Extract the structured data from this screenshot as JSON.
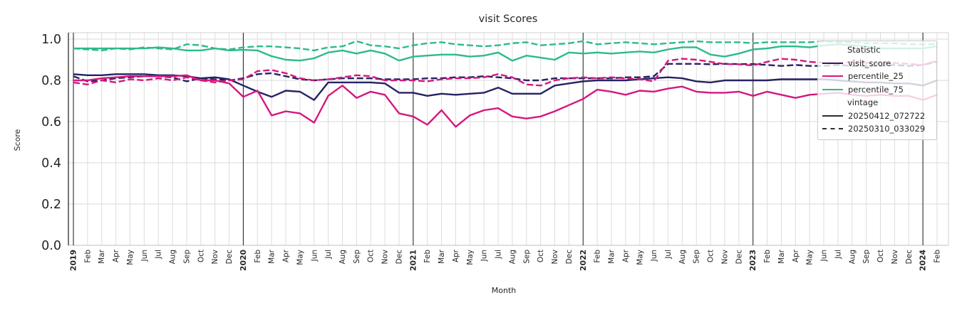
{
  "title": "visit Scores",
  "axes": {
    "xlabel": "Month",
    "ylabel": "Score"
  },
  "legend": {
    "title": "Statistic",
    "statistic_entries": [
      {
        "label": "visit_score",
        "color": "#262262"
      },
      {
        "label": "percentile_25",
        "color": "#d5177e"
      },
      {
        "label": "percentile_75",
        "color": "#2cba8d"
      }
    ],
    "vintage_title": "vintage",
    "vintage_line_color": "#2e2e2e",
    "vintage_entries": [
      {
        "label": "20250412_072722",
        "style": "solid"
      },
      {
        "label": "20250310_033029",
        "style": "dashed"
      }
    ]
  },
  "chart_data": {
    "type": "line",
    "title": "visit Scores",
    "xlabel": "Month",
    "ylabel": "Score",
    "ylim": [
      0.0,
      1.0
    ],
    "ytick_labels": [
      "0.0",
      "0.2",
      "0.4",
      "0.6",
      "0.8",
      "1.0"
    ],
    "grid": true,
    "legend_position": "upper right",
    "x_labels": [
      "2019",
      "Feb",
      "Mar",
      "Apr",
      "May",
      "Jun",
      "Jul",
      "Aug",
      "Sep",
      "Oct",
      "Nov",
      "Dec",
      "2020",
      "Feb",
      "Mar",
      "Apr",
      "May",
      "Jun",
      "Jul",
      "Aug",
      "Sep",
      "Oct",
      "Nov",
      "Dec",
      "2021",
      "Feb",
      "Mar",
      "Apr",
      "May",
      "Jun",
      "Jul",
      "Aug",
      "Sep",
      "Oct",
      "Nov",
      "Dec",
      "2022",
      "Feb",
      "Mar",
      "Apr",
      "May",
      "Jun",
      "Jul",
      "Aug",
      "Sep",
      "Oct",
      "Nov",
      "Dec",
      "2023",
      "Feb",
      "Mar",
      "Apr",
      "May",
      "Jun",
      "Jul",
      "Aug",
      "Sep",
      "Oct",
      "Nov",
      "Dec",
      "2024",
      "Feb"
    ],
    "year_tick_indices": [
      0,
      12,
      24,
      36,
      48,
      60
    ],
    "series": [
      {
        "name": "visit_score",
        "vintage": "20250412_072722",
        "line_style": "solid",
        "color": "#262262",
        "values": [
          0.83,
          0.825,
          0.825,
          0.83,
          0.83,
          0.83,
          0.825,
          0.825,
          0.82,
          0.81,
          0.815,
          0.805,
          0.775,
          0.745,
          0.72,
          0.75,
          0.745,
          0.705,
          0.79,
          0.79,
          0.79,
          0.79,
          0.785,
          0.74,
          0.74,
          0.725,
          0.735,
          0.73,
          0.735,
          0.74,
          0.765,
          0.735,
          0.735,
          0.735,
          0.775,
          0.785,
          0.795,
          0.8,
          0.8,
          0.8,
          0.805,
          0.81,
          0.815,
          0.81,
          0.795,
          0.79,
          0.8,
          0.8,
          0.8,
          0.8,
          0.805,
          0.805,
          0.805,
          0.805,
          0.8,
          0.795,
          0.79,
          0.79,
          0.785,
          0.785,
          0.775,
          0.8
        ]
      },
      {
        "name": "visit_score",
        "vintage": "20250310_033029",
        "line_style": "dashed",
        "color": "#262262",
        "values": [
          0.82,
          0.795,
          0.8,
          0.81,
          0.815,
          0.82,
          0.82,
          0.815,
          0.795,
          0.81,
          0.805,
          0.8,
          0.81,
          0.83,
          0.835,
          0.82,
          0.805,
          0.8,
          0.805,
          0.81,
          0.81,
          0.81,
          0.805,
          0.805,
          0.805,
          0.81,
          0.81,
          0.815,
          0.815,
          0.82,
          0.815,
          0.81,
          0.8,
          0.8,
          0.81,
          0.81,
          0.81,
          0.81,
          0.81,
          0.815,
          0.815,
          0.82,
          0.88,
          0.88,
          0.88,
          0.878,
          0.88,
          0.879,
          0.879,
          0.875,
          0.87,
          0.875,
          0.87,
          0.87,
          0.875,
          0.87,
          0.87,
          0.87,
          0.875,
          0.87,
          0.875,
          0.89
        ]
      },
      {
        "name": "percentile_25",
        "vintage": "20250412_072722",
        "line_style": "solid",
        "color": "#d5177e",
        "values": [
          0.8,
          0.8,
          0.81,
          0.815,
          0.82,
          0.82,
          0.82,
          0.82,
          0.825,
          0.8,
          0.8,
          0.785,
          0.72,
          0.75,
          0.63,
          0.65,
          0.64,
          0.595,
          0.725,
          0.775,
          0.715,
          0.745,
          0.73,
          0.64,
          0.625,
          0.585,
          0.655,
          0.575,
          0.63,
          0.655,
          0.665,
          0.625,
          0.615,
          0.625,
          0.65,
          0.68,
          0.71,
          0.755,
          0.745,
          0.73,
          0.75,
          0.745,
          0.76,
          0.77,
          0.745,
          0.74,
          0.74,
          0.745,
          0.725,
          0.745,
          0.73,
          0.715,
          0.73,
          0.735,
          0.74,
          0.73,
          0.725,
          0.73,
          0.725,
          0.725,
          0.705,
          0.73
        ]
      },
      {
        "name": "percentile_25",
        "vintage": "20250310_033029",
        "line_style": "dashed",
        "color": "#d5177e",
        "values": [
          0.79,
          0.78,
          0.8,
          0.79,
          0.805,
          0.8,
          0.81,
          0.8,
          0.815,
          0.8,
          0.79,
          0.8,
          0.805,
          0.845,
          0.85,
          0.835,
          0.81,
          0.8,
          0.805,
          0.815,
          0.825,
          0.82,
          0.8,
          0.8,
          0.8,
          0.795,
          0.805,
          0.81,
          0.81,
          0.815,
          0.83,
          0.815,
          0.78,
          0.775,
          0.8,
          0.81,
          0.815,
          0.81,
          0.815,
          0.81,
          0.805,
          0.795,
          0.895,
          0.905,
          0.9,
          0.89,
          0.879,
          0.878,
          0.872,
          0.89,
          0.905,
          0.9,
          0.89,
          0.885,
          0.885,
          0.89,
          0.885,
          0.88,
          0.885,
          0.88,
          0.875,
          0.895
        ]
      },
      {
        "name": "percentile_75",
        "vintage": "20250412_072722",
        "line_style": "solid",
        "color": "#2cba8d",
        "values": [
          0.955,
          0.955,
          0.955,
          0.955,
          0.955,
          0.955,
          0.96,
          0.955,
          0.945,
          0.945,
          0.955,
          0.945,
          0.948,
          0.945,
          0.917,
          0.9,
          0.896,
          0.907,
          0.935,
          0.945,
          0.93,
          0.945,
          0.93,
          0.896,
          0.915,
          0.92,
          0.925,
          0.925,
          0.915,
          0.92,
          0.935,
          0.895,
          0.92,
          0.91,
          0.9,
          0.935,
          0.93,
          0.935,
          0.93,
          0.935,
          0.94,
          0.935,
          0.95,
          0.96,
          0.96,
          0.925,
          0.915,
          0.93,
          0.95,
          0.955,
          0.965,
          0.965,
          0.96,
          0.97,
          0.975,
          0.97,
          0.965,
          0.955,
          0.955,
          0.955,
          0.955,
          0.965
        ]
      },
      {
        "name": "percentile_75",
        "vintage": "20250310_033029",
        "line_style": "dashed",
        "color": "#2cba8d",
        "values": [
          0.955,
          0.95,
          0.945,
          0.955,
          0.95,
          0.96,
          0.955,
          0.95,
          0.975,
          0.97,
          0.955,
          0.95,
          0.96,
          0.965,
          0.965,
          0.96,
          0.955,
          0.945,
          0.96,
          0.965,
          0.99,
          0.97,
          0.965,
          0.955,
          0.97,
          0.98,
          0.985,
          0.975,
          0.97,
          0.965,
          0.97,
          0.98,
          0.985,
          0.97,
          0.975,
          0.98,
          0.99,
          0.975,
          0.98,
          0.985,
          0.98,
          0.975,
          0.98,
          0.985,
          0.99,
          0.985,
          0.985,
          0.985,
          0.98,
          0.985,
          0.985,
          0.985,
          0.985,
          0.99,
          0.985,
          0.985,
          0.98,
          0.98,
          0.98,
          0.975,
          0.975,
          0.975
        ]
      }
    ]
  }
}
